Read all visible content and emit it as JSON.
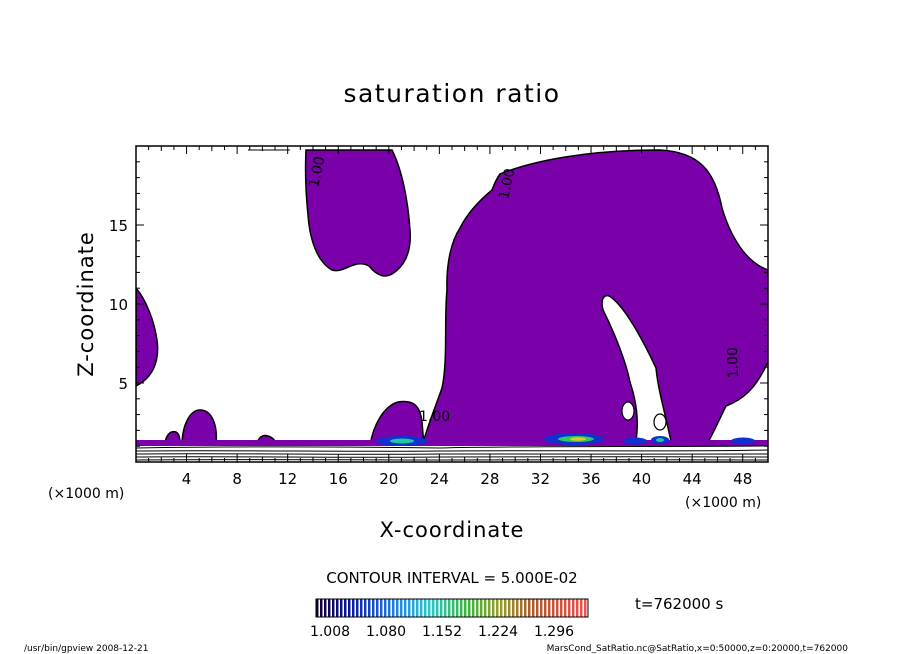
{
  "chart_data": {
    "type": "contour",
    "title": "saturation ratio",
    "xlabel": "X-coordinate",
    "ylabel": "Z-coordinate",
    "x_unit_left": "(×1000 m)",
    "x_unit_right": "(×1000 m)",
    "xlim": [
      0,
      50
    ],
    "ylim": [
      0,
      20
    ],
    "x_ticks": [
      "4",
      "8",
      "12",
      "16",
      "20",
      "24",
      "28",
      "32",
      "36",
      "40",
      "44",
      "48"
    ],
    "y_ticks": [
      "5",
      "10",
      "15"
    ],
    "contour_interval": "CONTOUR INTERVAL = 5.000E-02",
    "contour_label": "1.00",
    "fill_color": "#7a00aa",
    "colorbar_labels": [
      "1.008",
      "1.080",
      "1.152",
      "1.224",
      "1.296"
    ],
    "time_label": "t=762000 s"
  },
  "footer": {
    "left": "/usr/bin/gpview   2008-12-21",
    "right": "MarsCond_SatRatio.nc@SatRatio,x=0:50000,z=0:20000,t=762000"
  }
}
